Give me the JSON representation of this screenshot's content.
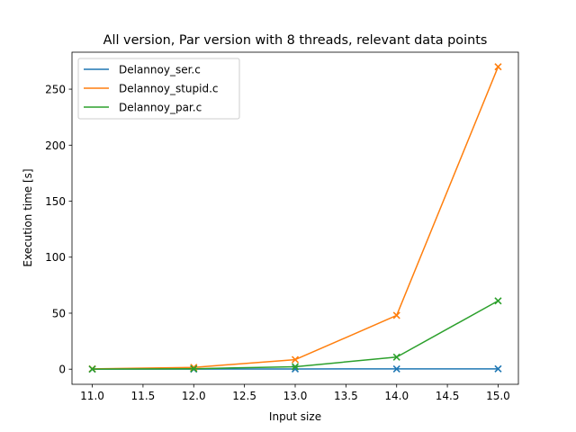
{
  "chart_data": {
    "type": "line",
    "title": "All version, Par version with 8 threads, relevant data points",
    "xlabel": "Input size",
    "ylabel": "Execution time [s]",
    "xlim": [
      10.8,
      15.2
    ],
    "ylim": [
      -13.5,
      283
    ],
    "x_ticks": [
      "11.0",
      "11.5",
      "12.0",
      "12.5",
      "13.0",
      "13.5",
      "14.0",
      "14.5",
      "15.0"
    ],
    "y_ticks": [
      "0",
      "50",
      "100",
      "150",
      "200",
      "250"
    ],
    "grid": false,
    "legend_position": "top-left",
    "marker": "x",
    "x": [
      11,
      12,
      13,
      14,
      15
    ],
    "series": [
      {
        "name": "Delannoy_ser.c",
        "color": "#1f77b4",
        "values": [
          0.02,
          0.06,
          0.2,
          0.25,
          0.3
        ]
      },
      {
        "name": "Delannoy_stupid.c",
        "color": "#ff7f0e",
        "values": [
          0.3,
          1.6,
          8.5,
          48,
          270
        ]
      },
      {
        "name": "Delannoy_par.c",
        "color": "#2ca02c",
        "values": [
          0.1,
          0.4,
          2.2,
          10.8,
          61
        ]
      }
    ]
  }
}
